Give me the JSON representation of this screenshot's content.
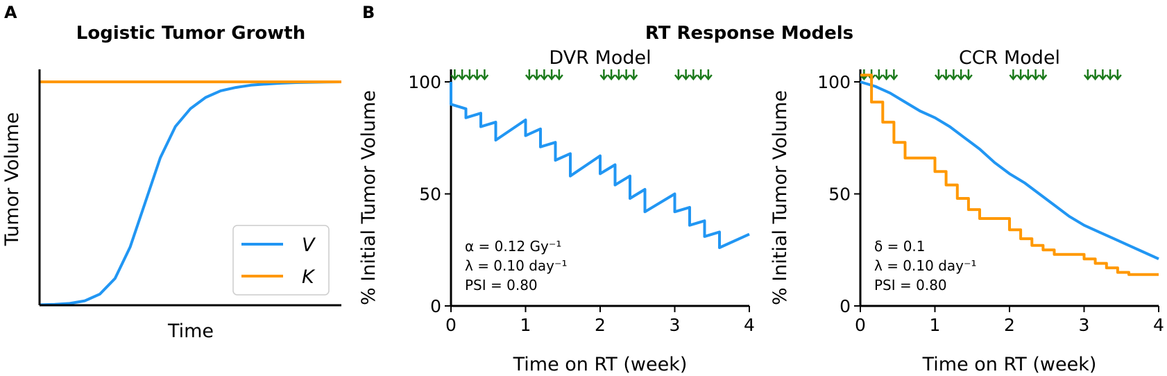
{
  "colors": {
    "blue": "#2196F3",
    "orange": "#FF9800",
    "arrow_green": "#1B7A1B"
  },
  "labels": {
    "panel_a": "A",
    "panel_b": "B",
    "group_title": "RT Response Models"
  },
  "chart_data": [
    {
      "id": "logistic",
      "type": "line",
      "title": "Logistic Tumor Growth",
      "xlabel": "Time",
      "ylabel": "Tumor Volume",
      "xlim": [
        0,
        10
      ],
      "ylim": [
        0,
        1.0
      ],
      "xticks": [],
      "yticks": [],
      "legend_position": "bottom-right",
      "series": [
        {
          "name": "V",
          "color": "#2196F3",
          "x": [
            0,
            0.5,
            1,
            1.5,
            2,
            2.5,
            3,
            3.5,
            4,
            4.5,
            5,
            5.5,
            6,
            6.5,
            7,
            7.5,
            8,
            8.5,
            9,
            9.5,
            10
          ],
          "y": [
            0.002,
            0.004,
            0.008,
            0.02,
            0.05,
            0.12,
            0.26,
            0.46,
            0.66,
            0.8,
            0.88,
            0.93,
            0.96,
            0.975,
            0.985,
            0.99,
            0.994,
            0.997,
            0.998,
            0.999,
            1.0
          ]
        },
        {
          "name": "K",
          "color": "#FF9800",
          "x": [
            0,
            10
          ],
          "y": [
            1.0,
            1.0
          ]
        }
      ]
    },
    {
      "id": "dvr",
      "type": "line",
      "title": "DVR Model",
      "xlabel": "Time on RT (week)",
      "ylabel": "% Initial Tumor Volume",
      "xlim": [
        0,
        4
      ],
      "ylim": [
        0,
        105
      ],
      "xticks": [
        0,
        1,
        2,
        3,
        4
      ],
      "yticks": [
        0,
        50,
        100
      ],
      "dose_days_weeks": [
        0.05,
        0.15,
        0.25,
        0.35,
        0.45,
        1.05,
        1.15,
        1.25,
        1.35,
        1.45,
        2.05,
        2.15,
        2.25,
        2.35,
        2.45,
        3.05,
        3.15,
        3.25,
        3.35,
        3.45
      ],
      "annotations": [
        "α = 0.12 Gy⁻¹",
        "λ = 0.10 day⁻¹",
        "PSI = 0.80"
      ],
      "series": [
        {
          "name": "V",
          "color": "#2196F3",
          "x": [
            0,
            0,
            0.2,
            0.2,
            0.4,
            0.4,
            0.6,
            0.6,
            1.0,
            1.0,
            1.2,
            1.2,
            1.4,
            1.4,
            1.6,
            1.6,
            2.0,
            2.0,
            2.2,
            2.2,
            2.4,
            2.4,
            2.6,
            2.6,
            3.0,
            3.0,
            3.2,
            3.2,
            3.4,
            3.4,
            3.6,
            3.6,
            4.0
          ],
          "y": [
            100,
            90,
            88,
            84,
            86,
            80,
            82,
            74,
            83,
            76,
            79,
            71,
            73,
            65,
            68,
            58,
            67,
            59,
            63,
            54,
            58,
            48,
            52,
            42,
            50,
            42,
            44,
            36,
            38,
            31,
            33,
            26,
            32
          ]
        }
      ]
    },
    {
      "id": "ccr",
      "type": "line",
      "title": "CCR Model",
      "xlabel": "Time on RT (week)",
      "ylabel": "% Initial Tumor Volume",
      "xlim": [
        0,
        4
      ],
      "ylim": [
        0,
        105
      ],
      "xticks": [
        0,
        1,
        2,
        3,
        4
      ],
      "yticks": [
        0,
        50,
        100
      ],
      "dose_days_weeks": [
        0.05,
        0.15,
        0.25,
        0.35,
        0.45,
        1.05,
        1.15,
        1.25,
        1.35,
        1.45,
        2.05,
        2.15,
        2.25,
        2.35,
        2.45,
        3.05,
        3.15,
        3.25,
        3.35,
        3.45
      ],
      "annotations": [
        "δ = 0.1",
        "λ = 0.10 day⁻¹",
        "PSI = 0.80"
      ],
      "series": [
        {
          "name": "blue",
          "color": "#2196F3",
          "x": [
            0,
            0.2,
            0.4,
            0.6,
            0.8,
            1.0,
            1.2,
            1.4,
            1.6,
            1.8,
            2.0,
            2.2,
            2.4,
            2.6,
            2.8,
            3.0,
            3.2,
            3.4,
            3.6,
            3.8,
            4.0
          ],
          "y": [
            100,
            98,
            95,
            91,
            87,
            84,
            80,
            75,
            70,
            64,
            59,
            55,
            50,
            45,
            40,
            36,
            33,
            30,
            27,
            24,
            21
          ]
        },
        {
          "name": "orange",
          "color": "#FF9800",
          "x": [
            0,
            0.15,
            0.15,
            0.3,
            0.3,
            0.45,
            0.45,
            0.6,
            0.6,
            1.0,
            1.0,
            1.15,
            1.15,
            1.3,
            1.3,
            1.45,
            1.45,
            1.6,
            1.6,
            2.0,
            2.0,
            2.15,
            2.15,
            2.3,
            2.3,
            2.45,
            2.45,
            2.6,
            2.6,
            3.0,
            3.0,
            3.15,
            3.15,
            3.3,
            3.3,
            3.45,
            3.45,
            3.6,
            3.6,
            4.0
          ],
          "y": [
            103,
            103,
            91,
            91,
            82,
            82,
            73,
            73,
            66,
            66,
            60,
            60,
            54,
            54,
            48,
            48,
            43,
            43,
            39,
            39,
            34,
            34,
            30,
            30,
            27,
            27,
            25,
            25,
            23,
            23,
            21,
            21,
            19,
            19,
            17,
            17,
            15,
            15,
            14,
            14
          ]
        }
      ]
    }
  ]
}
